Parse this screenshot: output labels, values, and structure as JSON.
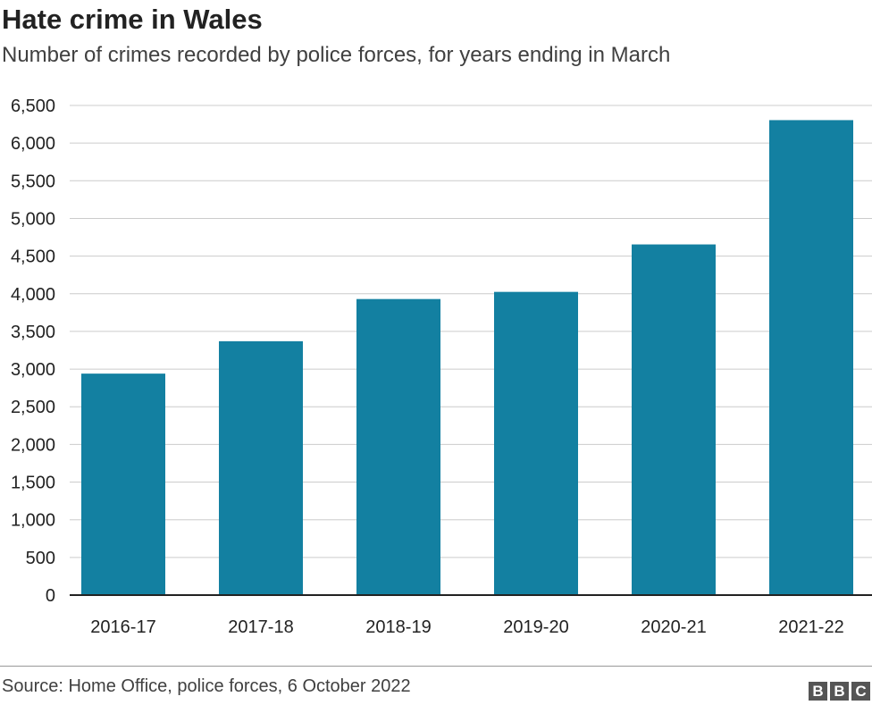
{
  "chart_data": {
    "type": "bar",
    "title": "Hate crime in Wales",
    "subtitle": "Number of crimes recorded by police forces, for years ending in March",
    "categories": [
      "2016-17",
      "2017-18",
      "2018-19",
      "2019-20",
      "2020-21",
      "2021-22"
    ],
    "values": [
      2940,
      3370,
      3930,
      4025,
      4655,
      6305
    ],
    "xlabel": "",
    "ylabel": "",
    "ylim": [
      0,
      6500
    ],
    "yticks": [
      0,
      500,
      1000,
      1500,
      2000,
      2500,
      3000,
      3500,
      4000,
      4500,
      5000,
      5500,
      6000,
      6500
    ],
    "ytick_labels": [
      "0",
      "500",
      "1,000",
      "1,500",
      "2,000",
      "2,500",
      "3,000",
      "3,500",
      "4,000",
      "4,500",
      "5,000",
      "5,500",
      "6,000",
      "6,500"
    ],
    "grid": true,
    "bar_color": "#1380A1"
  },
  "footer": {
    "source": "Source: Home Office, police forces, 6 October 2022",
    "logo": [
      "B",
      "B",
      "C"
    ]
  }
}
